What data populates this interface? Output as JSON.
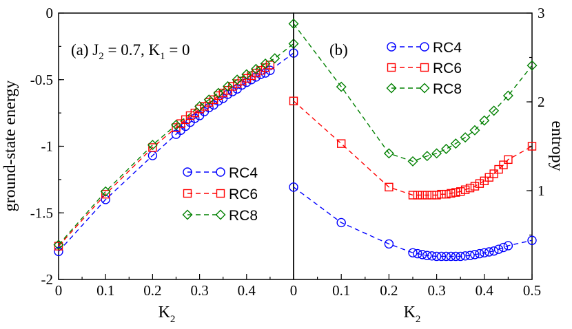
{
  "chart_data": [
    {
      "panel": "a",
      "type": "line",
      "annotation": {
        "prefix": "(a) J",
        "j_sub": "2",
        "j_value": " = 0.7, K",
        "k_sub": "1",
        "k_value": " = 0"
      },
      "xlabel": {
        "main": "K",
        "sub": "2"
      },
      "ylabel": "ground-state energy",
      "xlim": [
        0,
        0.5
      ],
      "ylim": [
        -2,
        0
      ],
      "xticks": [
        0,
        0.1,
        0.2,
        0.3,
        0.4
      ],
      "xtick_labels": [
        "0",
        "0.1",
        "0.2",
        "0.3",
        "0.4"
      ],
      "yticks": [
        -2,
        -1.5,
        -1,
        -0.5,
        0
      ],
      "ytick_labels": [
        "-2",
        "-1.5",
        "-1",
        "-0.5",
        "0"
      ],
      "legend_position": "center-right",
      "series": [
        {
          "name": "RC4",
          "color": "#0000ff",
          "marker": "circle",
          "x": [
            0,
            0.1,
            0.2,
            0.25,
            0.26,
            0.27,
            0.28,
            0.29,
            0.3,
            0.31,
            0.32,
            0.33,
            0.34,
            0.35,
            0.36,
            0.37,
            0.38,
            0.39,
            0.4,
            0.41,
            0.42,
            0.43,
            0.44,
            0.45,
            0.5
          ],
          "y": [
            -1.79,
            -1.4,
            -1.07,
            -0.91,
            -0.88,
            -0.85,
            -0.82,
            -0.79,
            -0.77,
            -0.74,
            -0.71,
            -0.69,
            -0.66,
            -0.64,
            -0.61,
            -0.59,
            -0.57,
            -0.54,
            -0.52,
            -0.5,
            -0.48,
            -0.46,
            -0.45,
            -0.43,
            -0.3
          ]
        },
        {
          "name": "RC6",
          "color": "#ff0000",
          "marker": "square",
          "x": [
            0,
            0.1,
            0.2,
            0.25,
            0.26,
            0.27,
            0.28,
            0.29,
            0.3,
            0.31,
            0.32,
            0.33,
            0.34,
            0.35,
            0.36,
            0.37,
            0.38,
            0.39,
            0.4,
            0.41,
            0.42,
            0.43,
            0.44,
            0.45
          ],
          "y": [
            -1.75,
            -1.36,
            -1.01,
            -0.86,
            -0.83,
            -0.8,
            -0.77,
            -0.75,
            -0.72,
            -0.7,
            -0.67,
            -0.65,
            -0.62,
            -0.6,
            -0.58,
            -0.55,
            -0.53,
            -0.51,
            -0.49,
            -0.47,
            -0.45,
            -0.43,
            -0.41,
            -0.39
          ]
        },
        {
          "name": "RC8",
          "color": "#008000",
          "marker": "diamond",
          "x": [
            0,
            0.1,
            0.2,
            0.25,
            0.3,
            0.32,
            0.34,
            0.36,
            0.38,
            0.4,
            0.42,
            0.44,
            0.46,
            0.5
          ],
          "y": [
            -1.74,
            -1.34,
            -0.99,
            -0.84,
            -0.7,
            -0.65,
            -0.6,
            -0.55,
            -0.5,
            -0.46,
            -0.42,
            -0.38,
            -0.34,
            -0.23
          ]
        }
      ]
    },
    {
      "panel": "b",
      "type": "line",
      "annotation": {
        "text": "(b)"
      },
      "xlabel": {
        "main": "K",
        "sub": "2"
      },
      "ylabel": "entropy",
      "ylabel_side": "right",
      "xlim": [
        0,
        0.5
      ],
      "ylim": [
        0,
        3
      ],
      "xticks": [
        0,
        0.1,
        0.2,
        0.3,
        0.4,
        0.5
      ],
      "xtick_labels": [
        "0",
        "0.1",
        "0.2",
        "0.3",
        "0.4",
        "0.5"
      ],
      "yticks": [
        1,
        2,
        3
      ],
      "ytick_labels": [
        "1",
        "2",
        "3"
      ],
      "legend_position": "top",
      "series": [
        {
          "name": "RC4",
          "color": "#0000ff",
          "marker": "circle",
          "x": [
            0,
            0.1,
            0.2,
            0.25,
            0.26,
            0.27,
            0.28,
            0.29,
            0.3,
            0.31,
            0.32,
            0.33,
            0.34,
            0.35,
            0.36,
            0.37,
            0.38,
            0.39,
            0.4,
            0.41,
            0.42,
            0.43,
            0.44,
            0.45,
            0.5
          ],
          "y": [
            1.04,
            0.64,
            0.4,
            0.3,
            0.29,
            0.28,
            0.27,
            0.265,
            0.26,
            0.26,
            0.26,
            0.26,
            0.26,
            0.26,
            0.265,
            0.27,
            0.28,
            0.29,
            0.3,
            0.31,
            0.32,
            0.34,
            0.36,
            0.38,
            0.44
          ]
        },
        {
          "name": "RC6",
          "color": "#ff0000",
          "marker": "square",
          "x": [
            0,
            0.1,
            0.2,
            0.25,
            0.26,
            0.27,
            0.28,
            0.29,
            0.3,
            0.31,
            0.32,
            0.33,
            0.34,
            0.35,
            0.36,
            0.37,
            0.38,
            0.39,
            0.4,
            0.41,
            0.42,
            0.43,
            0.44,
            0.45,
            0.5
          ],
          "y": [
            2.01,
            1.53,
            1.04,
            0.95,
            0.95,
            0.95,
            0.95,
            0.95,
            0.95,
            0.96,
            0.96,
            0.97,
            0.98,
            0.99,
            1.01,
            1.03,
            1.05,
            1.08,
            1.11,
            1.15,
            1.19,
            1.24,
            1.29,
            1.35,
            1.5
          ]
        },
        {
          "name": "RC8",
          "color": "#008000",
          "marker": "diamond",
          "x": [
            0,
            0.1,
            0.2,
            0.25,
            0.28,
            0.3,
            0.32,
            0.34,
            0.36,
            0.38,
            0.4,
            0.42,
            0.45,
            0.5
          ],
          "y": [
            2.88,
            2.17,
            1.42,
            1.33,
            1.39,
            1.42,
            1.47,
            1.53,
            1.6,
            1.68,
            1.79,
            1.9,
            2.07,
            2.41
          ]
        }
      ]
    }
  ]
}
